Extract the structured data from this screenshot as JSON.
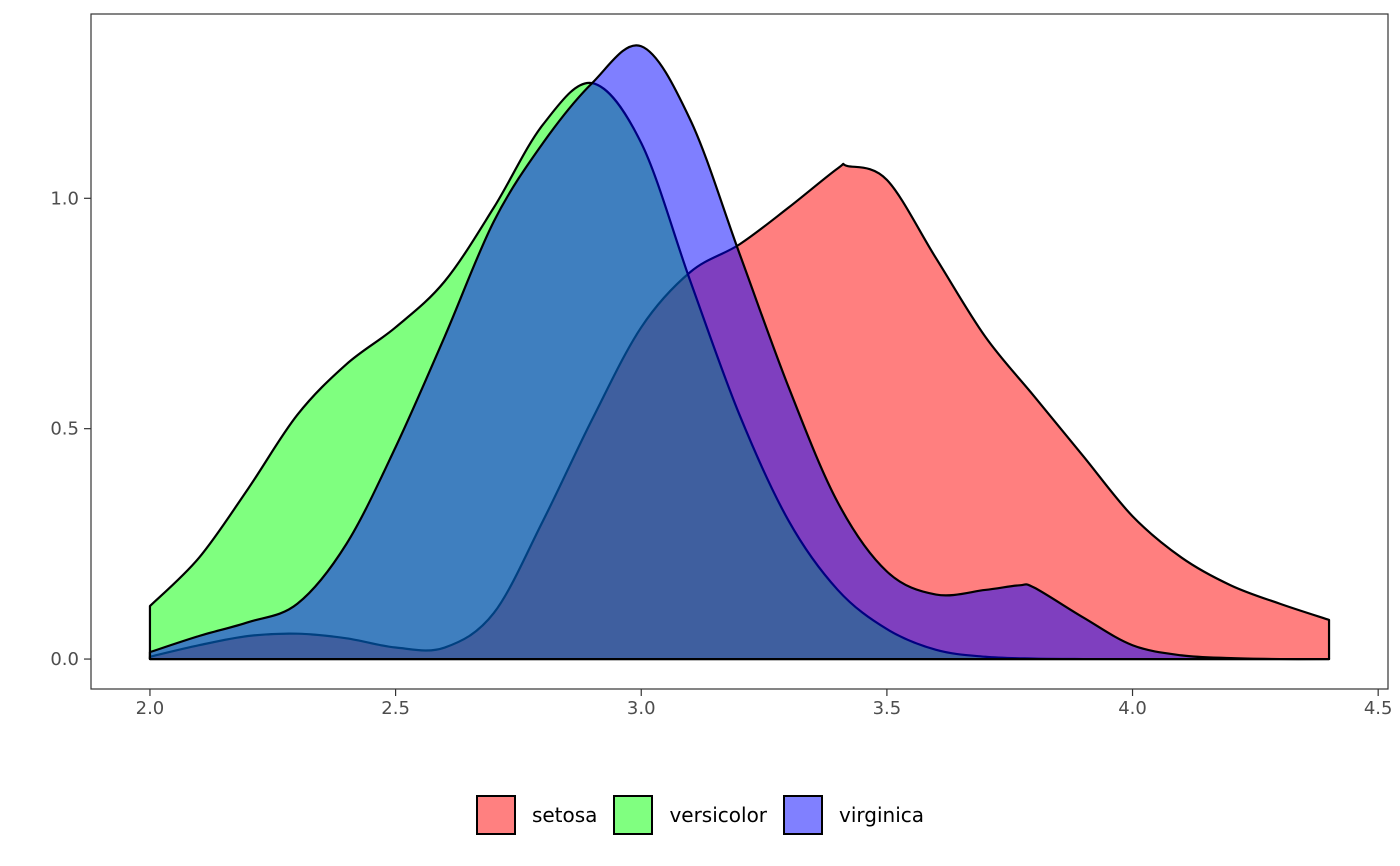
{
  "chart_data": {
    "type": "area",
    "subtype": "density",
    "title": "",
    "xlabel": "",
    "ylabel": "",
    "xlim": [
      1.88,
      4.52
    ],
    "ylim": [
      -0.065,
      1.4
    ],
    "x_ticks": [
      2.0,
      2.5,
      3.0,
      3.5,
      4.0,
      4.5
    ],
    "x_tick_labels": [
      "2.0",
      "2.5",
      "3.0",
      "3.5",
      "4.0",
      "4.5"
    ],
    "y_ticks": [
      0.0,
      0.5,
      1.0
    ],
    "y_tick_labels": [
      "0.0",
      "0.5",
      "1.0"
    ],
    "grid": false,
    "legend_position": "bottom",
    "fill_opacity": 0.5,
    "series": [
      {
        "name": "setosa",
        "color": "#FF0000",
        "x": [
          2.0,
          2.1,
          2.2,
          2.3,
          2.4,
          2.5,
          2.6,
          2.7,
          2.8,
          2.9,
          3.0,
          3.1,
          3.2,
          3.3,
          3.4,
          3.42,
          3.5,
          3.6,
          3.7,
          3.8,
          3.9,
          4.0,
          4.1,
          4.2,
          4.3,
          4.4
        ],
        "values": [
          0.005,
          0.03,
          0.05,
          0.055,
          0.045,
          0.025,
          0.025,
          0.1,
          0.3,
          0.52,
          0.72,
          0.84,
          0.9,
          0.98,
          1.065,
          1.07,
          1.04,
          0.87,
          0.7,
          0.57,
          0.44,
          0.31,
          0.22,
          0.16,
          0.12,
          0.085
        ]
      },
      {
        "name": "versicolor",
        "color": "#00FF00",
        "x": [
          2.0,
          2.1,
          2.2,
          2.3,
          2.4,
          2.5,
          2.6,
          2.7,
          2.8,
          2.9,
          3.0,
          3.1,
          3.2,
          3.3,
          3.4,
          3.5,
          3.6,
          3.7,
          3.8,
          3.9,
          4.0,
          4.1,
          4.2,
          4.3,
          4.4
        ],
        "values": [
          0.115,
          0.22,
          0.37,
          0.53,
          0.64,
          0.72,
          0.82,
          0.98,
          1.16,
          1.25,
          1.12,
          0.82,
          0.53,
          0.3,
          0.15,
          0.065,
          0.02,
          0.005,
          0.001,
          0.0,
          0.0,
          0.0,
          0.0,
          0.0,
          0.0
        ]
      },
      {
        "name": "virginica",
        "color": "#0000FF",
        "x": [
          2.0,
          2.1,
          2.2,
          2.3,
          2.4,
          2.5,
          2.6,
          2.7,
          2.8,
          2.9,
          3.0,
          3.1,
          3.2,
          3.3,
          3.4,
          3.5,
          3.6,
          3.7,
          3.77,
          3.8,
          3.9,
          4.0,
          4.1,
          4.2,
          4.3,
          4.4
        ],
        "values": [
          0.015,
          0.05,
          0.08,
          0.12,
          0.25,
          0.46,
          0.7,
          0.95,
          1.12,
          1.25,
          1.33,
          1.17,
          0.88,
          0.59,
          0.34,
          0.19,
          0.14,
          0.15,
          0.16,
          0.155,
          0.09,
          0.03,
          0.008,
          0.002,
          0.0,
          0.0
        ]
      }
    ]
  }
}
